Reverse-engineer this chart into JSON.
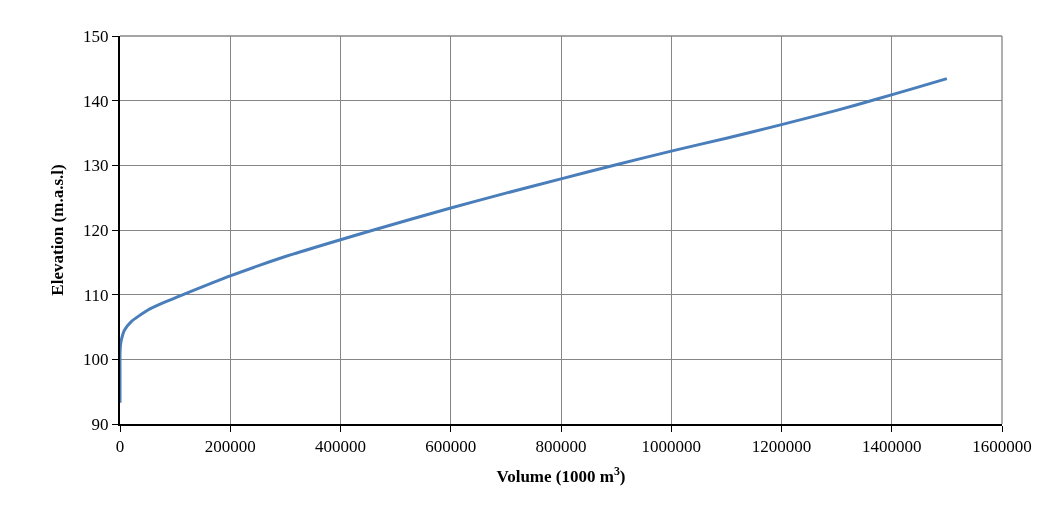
{
  "chart_data": {
    "type": "line",
    "xlabel": "Volume (1000 m$^{3}$)",
    "ylabel": "Elevation (m.a.s.l)",
    "x": [
      0,
      0,
      0,
      1000,
      3000,
      8000,
      20000,
      50000,
      80000,
      120000,
      200000,
      300000,
      400000,
      460000,
      600000,
      700000,
      800000,
      900000,
      1000000,
      1100000,
      1200000,
      1300000,
      1375000,
      1440000,
      1500000
    ],
    "series": [
      {
        "color": "#4a7ebb",
        "values": [
          93.3,
          98,
          101,
          102.3,
          103.2,
          104.5,
          105.8,
          107.6,
          108.8,
          110.2,
          112.9,
          115.9,
          118.5,
          120,
          123.4,
          125.7,
          127.9,
          130.1,
          132.2,
          134.2,
          136.3,
          138.5,
          140.3,
          141.9,
          143.4
        ]
      }
    ],
    "xlim": [
      0,
      1600000
    ],
    "xticks": [
      0,
      200000,
      400000,
      600000,
      800000,
      1000000,
      1200000,
      1400000,
      1600000
    ],
    "ylim": [
      90,
      150
    ],
    "yticks": [
      90,
      100,
      110,
      120,
      130,
      140,
      150
    ],
    "grid": true,
    "marker": "none",
    "line_style": "solid"
  }
}
